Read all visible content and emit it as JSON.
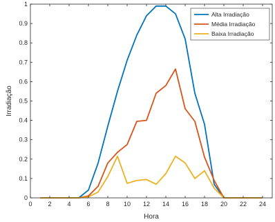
{
  "chart_data": {
    "type": "line",
    "title": "",
    "xlabel": "Hora",
    "ylabel": "Irradiação",
    "xlim": [
      0,
      25
    ],
    "ylim": [
      0,
      1
    ],
    "xticks": [
      0,
      2,
      4,
      6,
      8,
      10,
      12,
      14,
      16,
      18,
      20,
      22,
      24
    ],
    "yticks": [
      0,
      0.1,
      0.2,
      0.3,
      0.4,
      0.5,
      0.6,
      0.7,
      0.8,
      0.9,
      1
    ],
    "ytick_labels": [
      "0",
      "0.1",
      "0.2",
      "0.3",
      "0.4",
      "0.5",
      "0.6",
      "0.7",
      "0.8",
      "0.9",
      "1"
    ],
    "grid": false,
    "legend_position": "top-right",
    "x": [
      1,
      2,
      3,
      4,
      5,
      6,
      7,
      8,
      9,
      10,
      11,
      12,
      13,
      14,
      15,
      16,
      17,
      18,
      19,
      20,
      21,
      22,
      23,
      24
    ],
    "series": [
      {
        "name": "Alta Irradiação",
        "color": "#0072BD",
        "values": [
          0,
          0,
          0,
          0,
          0,
          0.04,
          0.18,
          0.37,
          0.55,
          0.71,
          0.84,
          0.94,
          0.99,
          0.99,
          0.95,
          0.82,
          0.54,
          0.38,
          0.07,
          0,
          0,
          0,
          0,
          0
        ]
      },
      {
        "name": "Média Irradiação",
        "color": "#D95319",
        "values": [
          0,
          0,
          0,
          0,
          0,
          0.01,
          0.06,
          0.18,
          0.235,
          0.275,
          0.395,
          0.4,
          0.54,
          0.58,
          0.665,
          0.46,
          0.395,
          0.21,
          0.09,
          0,
          0,
          0,
          0,
          0
        ]
      },
      {
        "name": "Baixa Irradiação",
        "color": "#EDB120",
        "values": [
          0,
          0,
          0,
          0,
          0,
          0.005,
          0.03,
          0.11,
          0.215,
          0.075,
          0.09,
          0.095,
          0.07,
          0.125,
          0.215,
          0.18,
          0.1,
          0.14,
          0.05,
          0,
          0,
          0,
          0,
          0
        ]
      }
    ]
  }
}
